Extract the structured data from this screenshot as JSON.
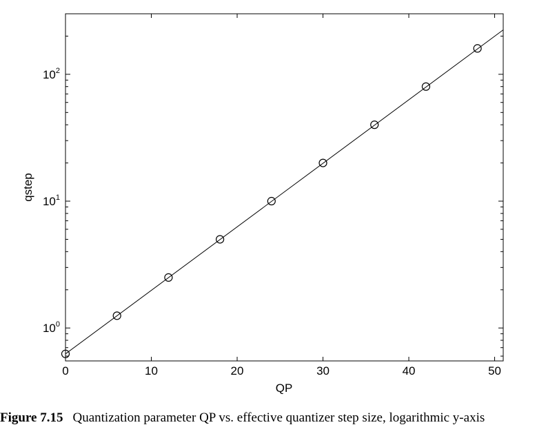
{
  "chart_data": {
    "type": "line",
    "xlabel": "QP",
    "ylabel": "qstep",
    "xlim": [
      0,
      51
    ],
    "ylim": [
      0.55,
      300
    ],
    "y_scale": "log",
    "grid": false,
    "x_ticks": [
      0,
      10,
      20,
      30,
      40,
      50
    ],
    "y_ticks": [
      {
        "value": 1,
        "base": "10",
        "exp": "0"
      },
      {
        "value": 10,
        "base": "10",
        "exp": "1"
      },
      {
        "value": 100,
        "base": "10",
        "exp": "2"
      }
    ],
    "series": [
      {
        "style": "line",
        "x": [
          0,
          51
        ],
        "y": [
          0.625,
          224
        ]
      },
      {
        "style": "markers",
        "marker": "open-circle",
        "x": [
          0,
          6,
          12,
          18,
          24,
          30,
          36,
          42,
          48
        ],
        "y": [
          0.625,
          1.25,
          2.5,
          5,
          10,
          20,
          40,
          80,
          160
        ]
      }
    ]
  },
  "caption": {
    "number": "Figure 7.15",
    "text": "Quantization parameter QP vs. effective quantizer step size, logarithmic y-axis"
  }
}
